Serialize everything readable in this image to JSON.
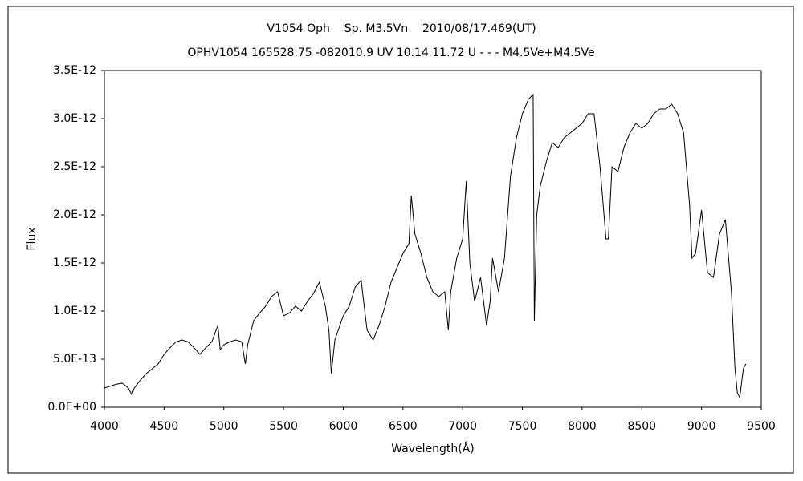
{
  "chart_data": {
    "type": "line",
    "title": "V1054 Oph    Sp. M3.5Vn    2010/08/17.469(UT)",
    "subtitle": "OPHV1054 165528.75 -082010.9 UV 10.14 11.72 U - - - M4.5Ve+M4.5Ve",
    "x_label": "Wavelength(Å)",
    "y_label": "Flux",
    "color": "#000000",
    "grid": false,
    "xlim": [
      4000,
      9500
    ],
    "xticks": [
      4000,
      4500,
      5000,
      5500,
      6000,
      6500,
      7000,
      7500,
      8000,
      8500,
      9000,
      9500
    ],
    "ylim": [
      0,
      3.5e-12
    ],
    "yticks": [
      {
        "value": 0,
        "label": "0.0E+00"
      },
      {
        "value": 5e-13,
        "label": "5.0E-13"
      },
      {
        "value": 1e-12,
        "label": "1.0E-12"
      },
      {
        "value": 1.5e-12,
        "label": "1.5E-12"
      },
      {
        "value": 2e-12,
        "label": "2.0E-12"
      },
      {
        "value": 2.5e-12,
        "label": "2.5E-12"
      },
      {
        "value": 3e-12,
        "label": "3.0E-12"
      },
      {
        "value": 3.5e-12,
        "label": "3.5E-12"
      }
    ],
    "x": [
      4000,
      4050,
      4100,
      4150,
      4200,
      4230,
      4250,
      4300,
      4350,
      4400,
      4450,
      4500,
      4550,
      4600,
      4650,
      4700,
      4750,
      4800,
      4850,
      4900,
      4950,
      4970,
      5000,
      5050,
      5100,
      5150,
      5180,
      5200,
      5250,
      5300,
      5350,
      5400,
      5450,
      5500,
      5550,
      5600,
      5650,
      5700,
      5750,
      5800,
      5850,
      5880,
      5900,
      5930,
      6000,
      6050,
      6100,
      6150,
      6180,
      6200,
      6250,
      6300,
      6350,
      6400,
      6450,
      6500,
      6550,
      6570,
      6600,
      6650,
      6700,
      6750,
      6800,
      6850,
      6880,
      6900,
      6950,
      7000,
      7030,
      7060,
      7100,
      7150,
      7200,
      7230,
      7250,
      7300,
      7350,
      7400,
      7450,
      7500,
      7550,
      7590,
      7600,
      7620,
      7650,
      7700,
      7750,
      7800,
      7850,
      7900,
      7950,
      8000,
      8050,
      8100,
      8150,
      8200,
      8220,
      8250,
      8300,
      8350,
      8400,
      8450,
      8500,
      8550,
      8600,
      8650,
      8700,
      8750,
      8800,
      8850,
      8900,
      8920,
      8950,
      9000,
      9050,
      9100,
      9150,
      9200,
      9250,
      9280,
      9300,
      9320,
      9350,
      9370
    ],
    "values": [
      2e-13,
      2.2e-13,
      2.4e-13,
      2.5e-13,
      2e-13,
      1.3e-13,
      2e-13,
      2.8e-13,
      3.5e-13,
      4e-13,
      4.5e-13,
      5.5e-13,
      6.2e-13,
      6.8e-13,
      7e-13,
      6.8e-13,
      6.2e-13,
      5.5e-13,
      6.2e-13,
      6.8e-13,
      8.5e-13,
      6e-13,
      6.5e-13,
      6.8e-13,
      7e-13,
      6.8e-13,
      4.5e-13,
      6.5e-13,
      9e-13,
      9.8e-13,
      1.05e-12,
      1.15e-12,
      1.2e-12,
      9.5e-13,
      9.8e-13,
      1.05e-12,
      1e-12,
      1.1e-12,
      1.18e-12,
      1.3e-12,
      1.05e-12,
      8e-13,
      3.5e-13,
      7e-13,
      9.5e-13,
      1.05e-12,
      1.25e-12,
      1.32e-12,
      1e-12,
      8e-13,
      7e-13,
      8.5e-13,
      1.05e-12,
      1.3e-12,
      1.45e-12,
      1.6e-12,
      1.7e-12,
      2.2e-12,
      1.8e-12,
      1.6e-12,
      1.35e-12,
      1.2e-12,
      1.15e-12,
      1.2e-12,
      8e-13,
      1.2e-12,
      1.55e-12,
      1.75e-12,
      2.35e-12,
      1.5e-12,
      1.1e-12,
      1.35e-12,
      8.5e-13,
      1.1e-12,
      1.55e-12,
      1.2e-12,
      1.55e-12,
      2.4e-12,
      2.8e-12,
      3.05e-12,
      3.2e-12,
      3.25e-12,
      9e-13,
      2e-12,
      2.3e-12,
      2.55e-12,
      2.75e-12,
      2.7e-12,
      2.8e-12,
      2.85e-12,
      2.9e-12,
      2.95e-12,
      3.05e-12,
      3.05e-12,
      2.5e-12,
      1.75e-12,
      1.75e-12,
      2.5e-12,
      2.45e-12,
      2.7e-12,
      2.85e-12,
      2.95e-12,
      2.9e-12,
      2.95e-12,
      3.05e-12,
      3.1e-12,
      3.1e-12,
      3.15e-12,
      3.05e-12,
      2.85e-12,
      2.1e-12,
      1.55e-12,
      1.6e-12,
      2.05e-12,
      1.4e-12,
      1.35e-12,
      1.8e-12,
      1.95e-12,
      1.2e-12,
      4e-13,
      1.5e-13,
      1e-13,
      4e-13,
      4.5e-13
    ]
  }
}
